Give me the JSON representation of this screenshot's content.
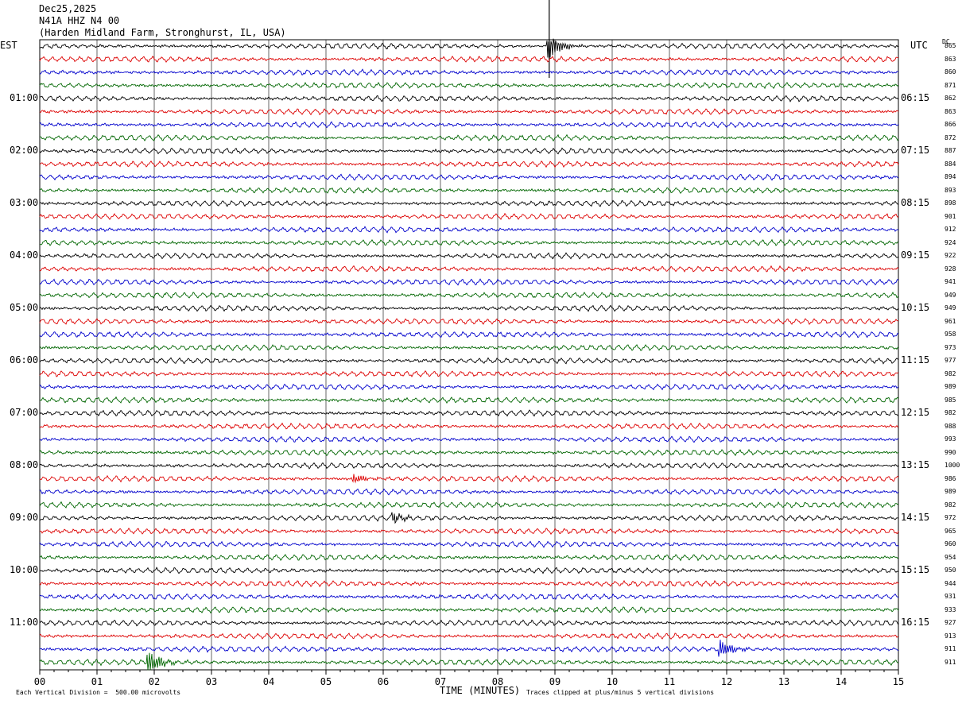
{
  "header": {
    "date": "Dec25,2025",
    "station": "N41A HHZ N4 00",
    "location": "(Harden Midland Farm, Stronghurst, IL, USA)"
  },
  "labels": {
    "left_tz": "EST",
    "right_tz": "UTC",
    "dc": "DC",
    "xlabel": "TIME (MINUTES)",
    "scale_note": "Each Vertical Division =  500.00 microvolts",
    "clip_note": "Traces clipped at plus/minus 5 vertical divisions"
  },
  "chart_data": {
    "type": "line",
    "title": "N41A HHZ N4 00",
    "xlabel": "TIME (MINUTES)",
    "xlim": [
      0,
      15
    ],
    "x_ticks": [
      "00",
      "01",
      "02",
      "03",
      "04",
      "05",
      "06",
      "07",
      "08",
      "09",
      "10",
      "11",
      "12",
      "13",
      "14",
      "15"
    ],
    "rows_per_hour": 4,
    "trace_colors": [
      "#000000",
      "#dd0000",
      "#0000cc",
      "#006600"
    ],
    "left_hour_labels": [
      "01:00",
      "02:00",
      "03:00",
      "04:00",
      "05:00",
      "06:00",
      "07:00",
      "08:00",
      "09:00",
      "10:00",
      "11:00"
    ],
    "right_hour_labels": [
      "06:15",
      "07:15",
      "08:15",
      "09:15",
      "10:15",
      "11:15",
      "12:15",
      "13:15",
      "14:15",
      "15:15",
      "16:15"
    ],
    "dc_offsets": [
      865,
      863,
      860,
      871,
      862,
      863,
      866,
      872,
      887,
      884,
      894,
      893,
      898,
      901,
      912,
      924,
      922,
      928,
      941,
      949,
      949,
      961,
      958,
      973,
      977,
      982,
      989,
      985,
      982,
      988,
      993,
      990,
      1000,
      986,
      989,
      982,
      972,
      965,
      960,
      954,
      950,
      944,
      931,
      933,
      927,
      913,
      911,
      911
    ],
    "events": [
      {
        "row": 0,
        "minute": 8.9,
        "amplitude": "clipped",
        "note": "large spike"
      },
      {
        "row": 33,
        "minute": 5.5,
        "amplitude": "moderate"
      },
      {
        "row": 36,
        "minute": 6.2,
        "amplitude": "moderate"
      },
      {
        "row": 46,
        "minute": 11.9,
        "amplitude": "large"
      },
      {
        "row": 47,
        "minute": 1.9,
        "amplitude": "clipped"
      }
    ]
  }
}
